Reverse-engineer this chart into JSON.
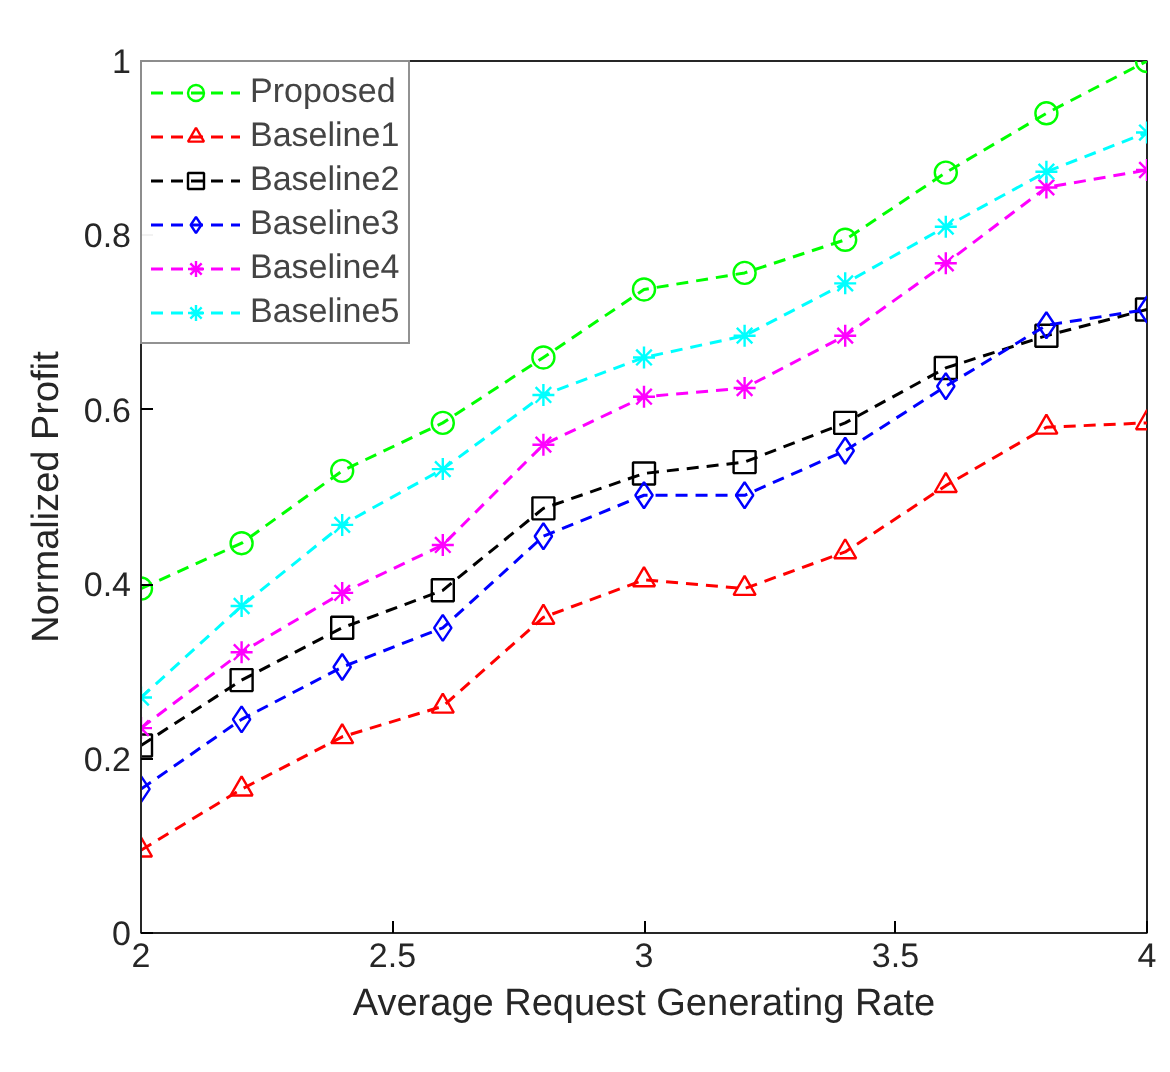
{
  "chart_data": {
    "type": "line",
    "xlabel": "Average Request Generating Rate",
    "ylabel": "Normalized Profit",
    "x": [
      2.0,
      2.2,
      2.4,
      2.6,
      2.8,
      3.0,
      3.2,
      3.4,
      3.6,
      3.8,
      4.0
    ],
    "xlim": [
      2,
      4
    ],
    "xticks": [
      2,
      2.5,
      3,
      3.5,
      4
    ],
    "ylim": [
      0,
      1
    ],
    "yticks": [
      0,
      0.2,
      0.4,
      0.6,
      0.8,
      1
    ],
    "grid": false,
    "legend": "top left",
    "line_style": "dashed",
    "series": [
      {
        "name": "Proposed",
        "color": "#00ff00",
        "marker": "circle",
        "values": [
          0.395,
          0.447,
          0.53,
          0.585,
          0.66,
          0.738,
          0.757,
          0.795,
          0.872,
          0.94,
          1.0
        ]
      },
      {
        "name": "Baseline1",
        "color": "#ff0000",
        "marker": "triangle",
        "values": [
          0.095,
          0.165,
          0.225,
          0.26,
          0.362,
          0.405,
          0.395,
          0.437,
          0.513,
          0.58,
          0.585
        ]
      },
      {
        "name": "Baseline2",
        "color": "#000000",
        "marker": "square",
        "values": [
          0.215,
          0.29,
          0.35,
          0.393,
          0.487,
          0.527,
          0.54,
          0.585,
          0.648,
          0.685,
          0.715
        ]
      },
      {
        "name": "Baseline3",
        "color": "#0000ff",
        "marker": "diamond",
        "values": [
          0.165,
          0.245,
          0.305,
          0.35,
          0.455,
          0.502,
          0.502,
          0.553,
          0.627,
          0.697,
          0.715
        ]
      },
      {
        "name": "Baseline4",
        "color": "#ff00ff",
        "marker": "cross",
        "values": [
          0.235,
          0.322,
          0.39,
          0.445,
          0.56,
          0.615,
          0.625,
          0.685,
          0.768,
          0.855,
          0.875
        ]
      },
      {
        "name": "Baseline5",
        "color": "#00ffff",
        "marker": "cross",
        "values": [
          0.27,
          0.375,
          0.468,
          0.532,
          0.617,
          0.66,
          0.685,
          0.745,
          0.81,
          0.873,
          0.918
        ]
      }
    ]
  }
}
